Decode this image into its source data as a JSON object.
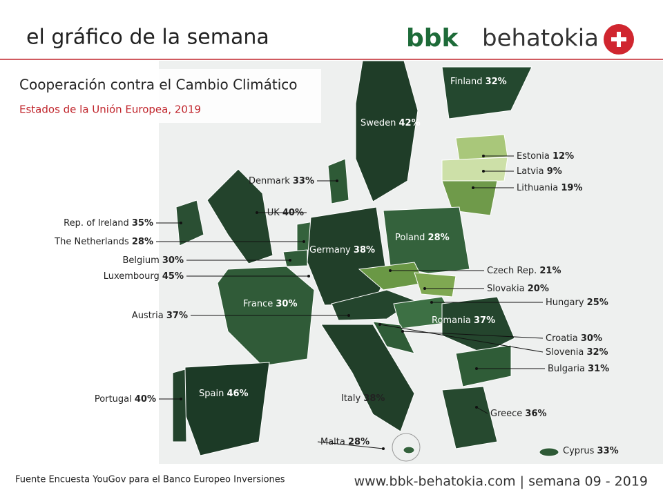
{
  "header": {
    "title": "el gráfico de la semana",
    "logo": {
      "bold": "bbk",
      "text": "behatokia"
    }
  },
  "map": {
    "title": "Cooperación contra el Cambio Climático",
    "subtitle": "Estados de la Unión Europea, 2019",
    "countries": [
      {
        "name": "Finland",
        "share": "32%"
      },
      {
        "name": "Sweden",
        "share": "42%"
      },
      {
        "name": "Estonia",
        "share": "12%"
      },
      {
        "name": "Latvia",
        "share": "9%"
      },
      {
        "name": "Lithuania",
        "share": "19%"
      },
      {
        "name": "Denmark",
        "share": "33%"
      },
      {
        "name": "UK",
        "share": "40%"
      },
      {
        "name": "Rep. of Ireland",
        "share": "35%"
      },
      {
        "name": "The Netherlands",
        "share": "28%"
      },
      {
        "name": "Belgium",
        "share": "30%"
      },
      {
        "name": "Luxembourg",
        "share": "45%"
      },
      {
        "name": "Germany",
        "share": "38%"
      },
      {
        "name": "Poland",
        "share": "28%"
      },
      {
        "name": "Czech Rep.",
        "share": "21%"
      },
      {
        "name": "Slovakia",
        "share": "20%"
      },
      {
        "name": "Hungary",
        "share": "25%"
      },
      {
        "name": "France",
        "share": "30%"
      },
      {
        "name": "Austria",
        "share": "37%"
      },
      {
        "name": "Romania",
        "share": "37%"
      },
      {
        "name": "Croatia",
        "share": "30%"
      },
      {
        "name": "Slovenia",
        "share": "32%"
      },
      {
        "name": "Bulgaria",
        "share": "31%"
      },
      {
        "name": "Portugal",
        "share": "40%"
      },
      {
        "name": "Spain",
        "share": "46%"
      },
      {
        "name": "Italy",
        "share": "38%"
      },
      {
        "name": "Greece",
        "share": "36%"
      },
      {
        "name": "Malta",
        "share": "28%"
      },
      {
        "name": "Cyprus",
        "share": "33%"
      }
    ]
  },
  "footer": {
    "source": "Fuente Encuesta YouGov para el Banco Europeo Inversiones",
    "website": "www.bbk-behatokia.com | semana 09 - 2019"
  }
}
